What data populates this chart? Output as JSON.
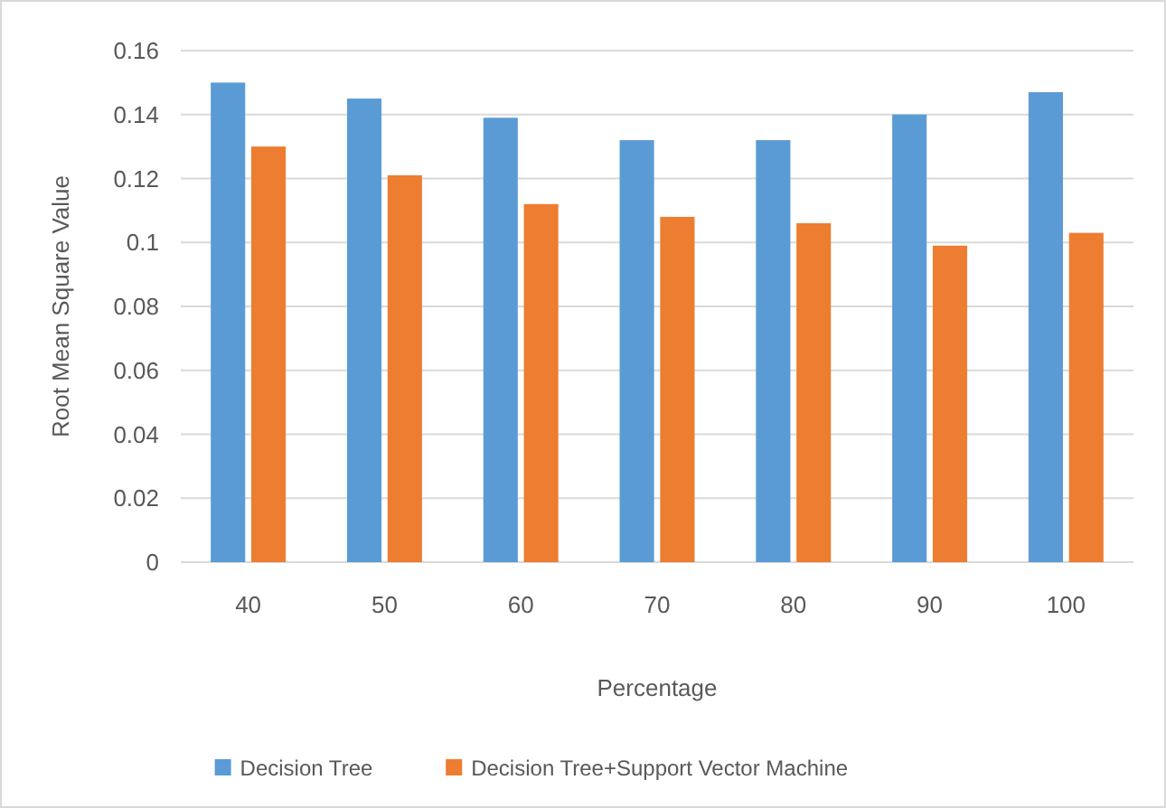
{
  "chart_data": {
    "type": "bar",
    "xlabel": "Percentage",
    "ylabel": "Root Mean Square Value",
    "categories": [
      "40",
      "50",
      "60",
      "70",
      "80",
      "90",
      "100"
    ],
    "series": [
      {
        "name": "Decision Tree",
        "color": "#5b9bd5",
        "values": [
          0.15,
          0.145,
          0.139,
          0.132,
          0.132,
          0.14,
          0.147
        ]
      },
      {
        "name": "Decision Tree+Support Vector Machine",
        "color": "#ed7d31",
        "values": [
          0.13,
          0.121,
          0.112,
          0.108,
          0.106,
          0.099,
          0.103
        ]
      }
    ],
    "ylim": [
      0,
      0.16
    ],
    "yticks": [
      0,
      0.02,
      0.04,
      0.06,
      0.08,
      0.1,
      0.12,
      0.14,
      0.16
    ],
    "grid": "y",
    "legend": "bottom"
  }
}
